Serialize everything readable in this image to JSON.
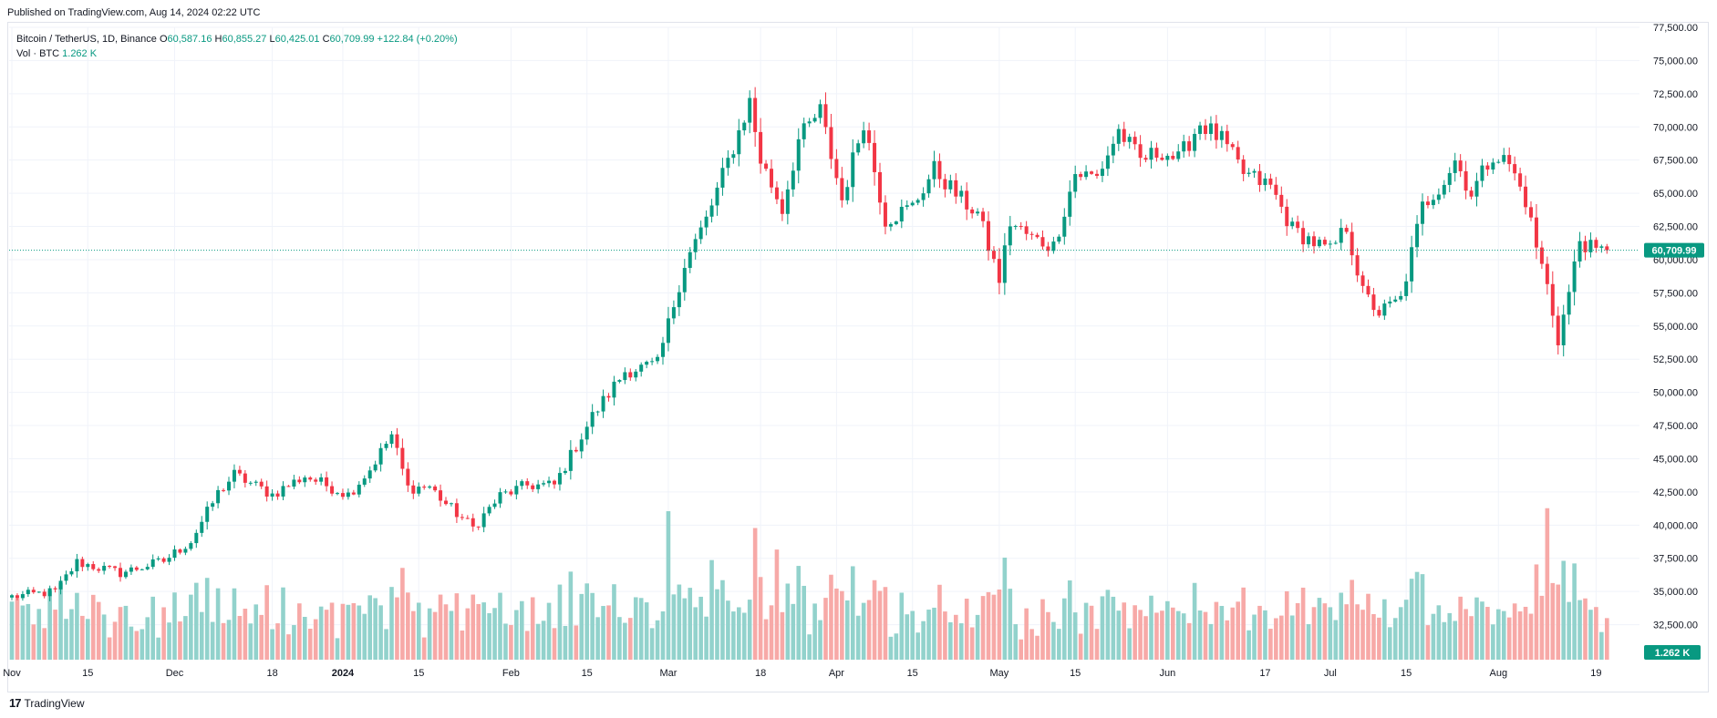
{
  "header": {
    "published": "Published on TradingView.com, Aug 14, 2024 02:22 UTC"
  },
  "legend": {
    "symbol": "Bitcoin / TetherUS, 1D, Binance",
    "o_label": "O",
    "o_value": "60,587.16",
    "h_label": "H",
    "h_value": "60,855.27",
    "l_label": "L",
    "l_value": "60,425.01",
    "c_label": "C",
    "c_value": "60,709.99",
    "change": "+122.84 (+0.20%)",
    "vol_label": "Vol · BTC",
    "vol_value": "1.262 K"
  },
  "footer": {
    "logo_mark": "17",
    "logo_text": "TradingView"
  },
  "colors": {
    "up": "#089981",
    "down": "#f23645",
    "up_vol": "#92d2cc",
    "down_vol": "#f7a9a7"
  },
  "chart_data": {
    "type": "candlestick",
    "price_axis": {
      "min": 30000,
      "max": 77500,
      "ticks": [
        "77,500.00",
        "75,000.00",
        "72,500.00",
        "70,000.00",
        "67,500.00",
        "65,000.00",
        "62,500.00",
        "60,000.00",
        "57,500.00",
        "55,000.00",
        "52,500.00",
        "50,000.00",
        "47,500.00",
        "45,000.00",
        "42,500.00",
        "40,000.00",
        "37,500.00",
        "35,000.00",
        "32,500.00"
      ],
      "tick_values": [
        77500,
        75000,
        72500,
        70000,
        67500,
        65000,
        62500,
        60000,
        57500,
        55000,
        52500,
        50000,
        47500,
        45000,
        42500,
        40000,
        37500,
        35000,
        32500
      ]
    },
    "time_axis": {
      "labels": [
        "Nov",
        "15",
        "Dec",
        "18",
        "2024",
        "15",
        "Feb",
        "15",
        "Mar",
        "18",
        "Apr",
        "15",
        "May",
        "15",
        "Jun",
        "17",
        "Jul",
        "15",
        "Aug",
        "19"
      ],
      "label_index": [
        0,
        14,
        30,
        48,
        61,
        75,
        92,
        106,
        121,
        138,
        152,
        166,
        182,
        196,
        213,
        231,
        243,
        257,
        274,
        292
      ]
    },
    "last_price": 60709.99,
    "last_price_label": "60,709.99",
    "last_volume_label": "1.262 K",
    "anchors": [
      [
        0,
        34600
      ],
      [
        8,
        35000
      ],
      [
        12,
        37200
      ],
      [
        20,
        36400
      ],
      [
        28,
        37300
      ],
      [
        33,
        38800
      ],
      [
        38,
        42400
      ],
      [
        41,
        43800
      ],
      [
        48,
        42300
      ],
      [
        54,
        43700
      ],
      [
        62,
        42300
      ],
      [
        66,
        44200
      ],
      [
        70,
        46800
      ],
      [
        73,
        42800
      ],
      [
        77,
        42900
      ],
      [
        80,
        41600
      ],
      [
        85,
        39800
      ],
      [
        90,
        42200
      ],
      [
        95,
        43000
      ],
      [
        100,
        43000
      ],
      [
        107,
        48200
      ],
      [
        113,
        51600
      ],
      [
        119,
        52100
      ],
      [
        124,
        59700
      ],
      [
        128,
        63000
      ],
      [
        133,
        68500
      ],
      [
        136,
        71900
      ],
      [
        138,
        67500
      ],
      [
        142,
        63800
      ],
      [
        145,
        69000
      ],
      [
        149,
        71200
      ],
      [
        153,
        64500
      ],
      [
        157,
        70500
      ],
      [
        161,
        63000
      ],
      [
        166,
        64000
      ],
      [
        170,
        66800
      ],
      [
        175,
        64500
      ],
      [
        178,
        63500
      ],
      [
        182,
        58500
      ],
      [
        184,
        62800
      ],
      [
        188,
        61600
      ],
      [
        192,
        61000
      ],
      [
        196,
        66500
      ],
      [
        200,
        66200
      ],
      [
        204,
        69700
      ],
      [
        208,
        67500
      ],
      [
        212,
        68200
      ],
      [
        215,
        67500
      ],
      [
        219,
        70300
      ],
      [
        223,
        69000
      ],
      [
        227,
        66500
      ],
      [
        232,
        65500
      ],
      [
        236,
        62300
      ],
      [
        240,
        61300
      ],
      [
        243,
        60600
      ],
      [
        246,
        62500
      ],
      [
        249,
        57500
      ],
      [
        252,
        56000
      ],
      [
        256,
        57000
      ],
      [
        260,
        64000
      ],
      [
        264,
        66000
      ],
      [
        266,
        67500
      ],
      [
        269,
        65000
      ],
      [
        273,
        68000
      ],
      [
        276,
        67200
      ],
      [
        279,
        64500
      ],
      [
        281,
        61000
      ],
      [
        283,
        58000
      ],
      [
        285,
        54000
      ],
      [
        287,
        57500
      ],
      [
        289,
        61500
      ],
      [
        292,
        60500
      ],
      [
        294,
        60700
      ]
    ],
    "volume_axis": {
      "max_volume": 100000
    }
  }
}
